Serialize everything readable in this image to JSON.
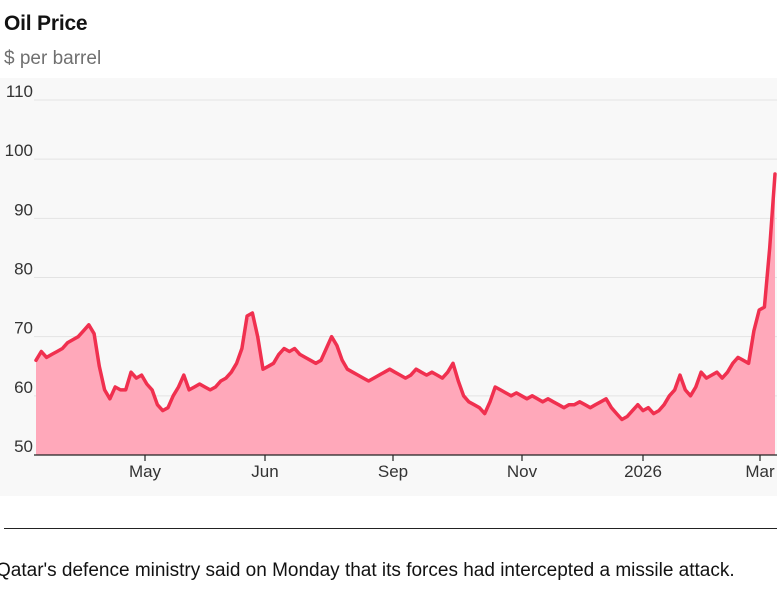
{
  "title": "Oil Price",
  "subtitle": "$ per barrel",
  "caption": "Qatar's defence ministry said on Monday that its forces had intercepted a missile attack.",
  "colors": {
    "line": "#f0304f",
    "area": "#ffa8ba",
    "grid": "#e3e3e3",
    "axis": "#222222",
    "tick_text": "#333333",
    "plot_background": "#f8f8f8"
  },
  "chart_data": {
    "type": "area",
    "title": "Oil Price",
    "subtitle": "$ per barrel",
    "xlabel": "",
    "ylabel": "",
    "ylim": [
      50,
      110
    ],
    "yticks": [
      50,
      60,
      70,
      80,
      90,
      100,
      110
    ],
    "xtick_labels": [
      "May",
      "Jun",
      "Sep",
      "Nov",
      "2026",
      "Mar"
    ],
    "grid": true,
    "legend": "none",
    "series": [
      {
        "values": [
          66.0,
          67.5,
          66.5,
          67.0,
          67.5,
          68.0,
          69.0,
          69.5,
          70.0,
          71.0,
          72.0,
          70.5,
          65.0,
          61.0,
          59.5,
          61.5,
          61.0,
          61.0,
          64.0,
          63.0,
          63.5,
          62.0,
          61.0,
          58.5,
          57.5,
          58.0,
          60.0,
          61.5,
          63.5,
          61.0,
          61.5,
          62.0,
          61.5,
          61.0,
          61.5,
          62.5,
          63.0,
          64.0,
          65.5,
          68.0,
          73.5,
          74.0,
          70.0,
          64.5,
          65.0,
          65.5,
          67.0,
          68.0,
          67.5,
          68.0,
          67.0,
          66.5,
          66.0,
          65.5,
          66.0,
          68.0,
          70.0,
          68.5,
          66.0,
          64.5,
          64.0,
          63.5,
          63.0,
          62.5,
          63.0,
          63.5,
          64.0,
          64.5,
          64.0,
          63.5,
          63.0,
          63.5,
          64.5,
          64.0,
          63.5,
          64.0,
          63.5,
          63.0,
          64.0,
          65.5,
          62.5,
          60.0,
          59.0,
          58.5,
          58.0,
          57.0,
          59.0,
          61.5,
          61.0,
          60.5,
          60.0,
          60.5,
          60.0,
          59.5,
          60.0,
          59.5,
          59.0,
          59.5,
          59.0,
          58.5,
          58.0,
          58.5,
          58.5,
          59.0,
          58.5,
          58.0,
          58.5,
          59.0,
          59.5,
          58.0,
          57.0,
          56.0,
          56.5,
          57.5,
          58.5,
          57.5,
          58.0,
          57.0,
          57.5,
          58.5,
          60.0,
          61.0,
          63.5,
          61.0,
          60.0,
          61.5,
          64.0,
          63.0,
          63.5,
          64.0,
          63.0,
          64.0,
          65.5,
          66.5,
          66.0,
          65.5,
          71.0,
          74.5,
          75.0,
          85.0,
          97.5
        ]
      }
    ]
  }
}
